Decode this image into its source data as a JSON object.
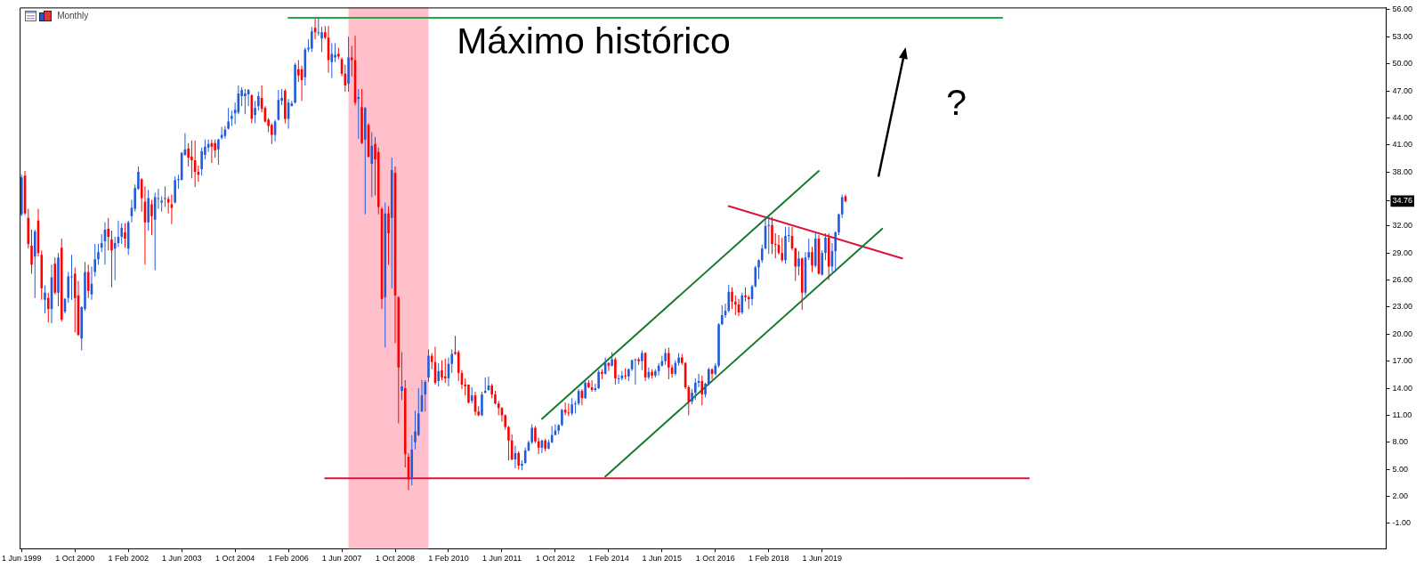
{
  "chart_data": {
    "type": "candlestick",
    "title": "Monthly",
    "x": [
      "1999-06",
      "1999-07",
      "1999-08",
      "1999-09",
      "1999-10",
      "1999-11",
      "1999-12",
      "2000-01",
      "2000-02",
      "2000-03",
      "2000-04",
      "2000-05",
      "2000-06",
      "2000-07",
      "2000-08",
      "2000-09",
      "2000-10",
      "2000-11",
      "2000-12",
      "2001-01",
      "2001-02",
      "2001-03",
      "2001-04",
      "2001-05",
      "2001-06",
      "2001-07",
      "2001-08",
      "2001-09",
      "2001-10",
      "2001-11",
      "2001-12",
      "2002-01",
      "2002-02",
      "2002-03",
      "2002-04",
      "2002-05",
      "2002-06",
      "2002-07",
      "2002-08",
      "2002-09",
      "2002-10",
      "2002-11",
      "2002-12",
      "2003-01",
      "2003-02",
      "2003-03",
      "2003-04",
      "2003-05",
      "2003-06",
      "2003-07",
      "2003-08",
      "2003-09",
      "2003-10",
      "2003-11",
      "2003-12",
      "2004-01",
      "2004-02",
      "2004-03",
      "2004-04",
      "2004-05",
      "2004-06",
      "2004-07",
      "2004-08",
      "2004-09",
      "2004-10",
      "2004-11",
      "2004-12",
      "2005-01",
      "2005-02",
      "2005-03",
      "2005-04",
      "2005-05",
      "2005-06",
      "2005-07",
      "2005-08",
      "2005-09",
      "2005-10",
      "2005-11",
      "2005-12",
      "2006-01",
      "2006-02",
      "2006-03",
      "2006-04",
      "2006-05",
      "2006-06",
      "2006-07",
      "2006-08",
      "2006-09",
      "2006-10",
      "2006-11",
      "2006-12",
      "2007-01",
      "2007-02",
      "2007-03",
      "2007-04",
      "2007-05",
      "2007-06",
      "2007-07",
      "2007-08",
      "2007-09",
      "2007-10",
      "2007-11",
      "2007-12",
      "2008-01",
      "2008-02",
      "2008-03",
      "2008-04",
      "2008-05",
      "2008-06",
      "2008-07",
      "2008-08",
      "2008-09",
      "2008-10",
      "2008-11",
      "2008-12",
      "2009-01",
      "2009-02",
      "2009-03",
      "2009-04",
      "2009-05",
      "2009-06",
      "2009-07",
      "2009-08",
      "2009-09",
      "2009-10",
      "2009-11",
      "2009-12",
      "2010-01",
      "2010-02",
      "2010-03",
      "2010-04",
      "2010-05",
      "2010-06",
      "2010-07",
      "2010-08",
      "2010-09",
      "2010-10",
      "2010-11",
      "2010-12",
      "2011-01",
      "2011-02",
      "2011-03",
      "2011-04",
      "2011-05",
      "2011-06",
      "2011-07",
      "2011-08",
      "2011-09",
      "2011-10",
      "2011-11",
      "2011-12",
      "2012-01",
      "2012-02",
      "2012-03",
      "2012-04",
      "2012-05",
      "2012-06",
      "2012-07",
      "2012-08",
      "2012-09",
      "2012-10",
      "2012-11",
      "2012-12",
      "2013-01",
      "2013-02",
      "2013-03",
      "2013-04",
      "2013-05",
      "2013-06",
      "2013-07",
      "2013-08",
      "2013-09",
      "2013-10",
      "2013-11",
      "2013-12",
      "2014-01",
      "2014-02",
      "2014-03",
      "2014-04",
      "2014-05",
      "2014-06",
      "2014-07",
      "2014-08",
      "2014-09",
      "2014-10",
      "2014-11",
      "2014-12",
      "2015-01",
      "2015-02",
      "2015-03",
      "2015-04",
      "2015-05",
      "2015-06",
      "2015-07",
      "2015-08",
      "2015-09",
      "2015-10",
      "2015-11",
      "2015-12",
      "2016-01",
      "2016-02",
      "2016-03",
      "2016-04",
      "2016-05",
      "2016-06",
      "2016-07",
      "2016-08",
      "2016-09",
      "2016-10",
      "2016-11",
      "2016-12",
      "2017-01",
      "2017-02",
      "2017-03",
      "2017-04",
      "2017-05",
      "2017-06",
      "2017-07",
      "2017-08",
      "2017-09",
      "2017-10",
      "2017-11",
      "2017-12",
      "2018-01",
      "2018-02",
      "2018-03",
      "2018-04",
      "2018-05",
      "2018-06",
      "2018-07",
      "2018-08",
      "2018-09",
      "2018-10",
      "2018-11",
      "2018-12",
      "2019-01",
      "2019-02",
      "2019-03",
      "2019-04",
      "2019-05",
      "2019-06",
      "2019-07",
      "2019-08",
      "2019-09",
      "2019-10",
      "2019-11",
      "2019-12",
      "2020-01"
    ],
    "ohlc": [
      [
        33.3,
        37.7,
        33.1,
        37.4
      ],
      [
        37.6,
        38.1,
        33.2,
        33.4
      ],
      [
        32.9,
        33.9,
        29.5,
        30.0
      ],
      [
        29.8,
        31.6,
        26.7,
        27.7
      ],
      [
        28.6,
        31.6,
        24.0,
        31.4
      ],
      [
        32.6,
        33.9,
        28.6,
        29.0
      ],
      [
        28.8,
        29.3,
        23.8,
        25.1
      ],
      [
        23.8,
        25.4,
        22.3,
        24.6
      ],
      [
        24.0,
        24.6,
        21.3,
        22.8
      ],
      [
        22.8,
        27.7,
        21.2,
        26.3
      ],
      [
        27.8,
        28.5,
        24.4,
        24.6
      ],
      [
        24.6,
        29.0,
        23.1,
        28.5
      ],
      [
        29.6,
        30.6,
        21.4,
        21.6
      ],
      [
        22.5,
        24.0,
        22.3,
        23.9
      ],
      [
        24.0,
        26.9,
        23.5,
        26.4
      ],
      [
        26.3,
        28.8,
        23.8,
        26.4
      ],
      [
        26.7,
        27.4,
        20.2,
        24.0
      ],
      [
        24.3,
        25.9,
        19.8,
        19.9
      ],
      [
        19.5,
        23.1,
        18.2,
        23.0
      ],
      [
        22.8,
        28.0,
        22.6,
        26.9
      ],
      [
        26.9,
        27.7,
        24.0,
        24.8
      ],
      [
        24.4,
        27.5,
        23.8,
        25.6
      ],
      [
        26.9,
        30.0,
        26.4,
        28.3
      ],
      [
        28.3,
        30.0,
        27.7,
        29.1
      ],
      [
        29.6,
        31.1,
        29.1,
        30.1
      ],
      [
        30.3,
        32.4,
        27.7,
        31.6
      ],
      [
        31.7,
        32.9,
        29.3,
        30.8
      ],
      [
        30.5,
        31.5,
        25.2,
        29.3
      ],
      [
        29.5,
        30.8,
        26.0,
        30.1
      ],
      [
        30.1,
        32.6,
        29.7,
        30.8
      ],
      [
        30.8,
        32.3,
        30.0,
        31.8
      ],
      [
        31.3,
        32.3,
        29.6,
        30.6
      ],
      [
        29.5,
        32.6,
        28.8,
        32.4
      ],
      [
        33.1,
        34.9,
        32.4,
        34.0
      ],
      [
        33.9,
        36.6,
        33.6,
        36.2
      ],
      [
        36.1,
        38.6,
        36.0,
        38.0
      ],
      [
        37.2,
        37.3,
        33.6,
        35.1
      ],
      [
        34.7,
        36.4,
        27.7,
        32.4
      ],
      [
        32.4,
        36.0,
        31.5,
        35.1
      ],
      [
        34.4,
        34.9,
        31.0,
        33.1
      ],
      [
        32.7,
        35.7,
        27.1,
        35.2
      ],
      [
        35.0,
        36.1,
        33.9,
        35.1
      ],
      [
        34.6,
        35.3,
        33.6,
        34.8
      ],
      [
        35.0,
        36.4,
        34.1,
        35.1
      ],
      [
        35.0,
        35.3,
        33.4,
        34.6
      ],
      [
        34.4,
        35.5,
        32.2,
        34.0
      ],
      [
        34.6,
        37.5,
        34.5,
        37.1
      ],
      [
        37.1,
        37.7,
        36.1,
        37.2
      ],
      [
        37.1,
        40.2,
        37.1,
        40.1
      ],
      [
        39.9,
        42.3,
        39.8,
        40.5
      ],
      [
        40.6,
        41.2,
        38.6,
        39.6
      ],
      [
        39.7,
        41.5,
        37.3,
        39.3
      ],
      [
        39.3,
        41.5,
        36.3,
        38.0
      ],
      [
        38.0,
        38.7,
        36.9,
        37.7
      ],
      [
        38.3,
        40.7,
        37.6,
        40.3
      ],
      [
        39.9,
        41.6,
        39.4,
        40.8
      ],
      [
        40.7,
        41.6,
        40.2,
        41.1
      ],
      [
        41.2,
        41.6,
        39.0,
        40.8
      ],
      [
        41.2,
        41.6,
        39.6,
        40.4
      ],
      [
        40.5,
        41.7,
        38.8,
        41.6
      ],
      [
        41.8,
        43.0,
        41.6,
        42.1
      ],
      [
        42.0,
        43.1,
        41.7,
        42.7
      ],
      [
        42.8,
        45.1,
        42.7,
        43.6
      ],
      [
        43.9,
        44.8,
        43.1,
        44.2
      ],
      [
        44.5,
        45.7,
        43.3,
        44.9
      ],
      [
        44.6,
        47.6,
        44.4,
        46.7
      ],
      [
        46.4,
        47.4,
        45.3,
        47.1
      ],
      [
        46.4,
        47.2,
        44.4,
        46.7
      ],
      [
        46.6,
        47.2,
        45.3,
        47.1
      ],
      [
        46.5,
        46.6,
        43.4,
        43.9
      ],
      [
        44.3,
        45.9,
        43.4,
        45.1
      ],
      [
        45.3,
        46.9,
        44.8,
        46.4
      ],
      [
        46.2,
        47.6,
        44.6,
        45.0
      ],
      [
        45.1,
        45.3,
        43.5,
        43.6
      ],
      [
        43.8,
        44.0,
        42.4,
        43.1
      ],
      [
        43.2,
        43.4,
        41.1,
        42.1
      ],
      [
        42.1,
        43.8,
        41.4,
        43.6
      ],
      [
        43.8,
        47.1,
        43.7,
        46.0
      ],
      [
        45.9,
        47.2,
        45.4,
        46.2
      ],
      [
        47.0,
        47.2,
        43.4,
        43.9
      ],
      [
        43.9,
        46.1,
        42.8,
        45.7
      ],
      [
        45.3,
        45.9,
        45.3,
        45.6
      ],
      [
        45.7,
        50.1,
        45.6,
        49.9
      ],
      [
        49.4,
        50.4,
        48.0,
        48.7
      ],
      [
        49.4,
        49.8,
        45.9,
        48.2
      ],
      [
        48.5,
        51.8,
        47.6,
        51.6
      ],
      [
        51.6,
        52.7,
        51.3,
        51.8
      ],
      [
        51.7,
        54.1,
        51.3,
        53.6
      ],
      [
        54.0,
        55.0,
        52.7,
        53.5
      ],
      [
        53.4,
        55.1,
        53.1,
        53.5
      ],
      [
        52.8,
        54.1,
        51.3,
        53.5
      ],
      [
        53.5,
        54.2,
        52.7,
        52.9
      ],
      [
        52.9,
        54.2,
        49.0,
        50.4
      ],
      [
        50.2,
        52.3,
        48.4,
        51.1
      ],
      [
        50.7,
        52.3,
        50.2,
        51.0
      ],
      [
        51.1,
        51.8,
        50.5,
        50.8
      ],
      [
        50.5,
        50.7,
        48.6,
        48.9
      ],
      [
        48.9,
        49.9,
        46.9,
        47.6
      ],
      [
        47.8,
        53.0,
        46.9,
        50.7
      ],
      [
        50.7,
        52.0,
        48.6,
        50.4
      ],
      [
        50.4,
        53.1,
        45.4,
        45.7
      ],
      [
        46.1,
        47.2,
        41.7,
        46.3
      ],
      [
        45.2,
        47.2,
        41.1,
        41.2
      ],
      [
        41.6,
        45.2,
        33.3,
        45.1
      ],
      [
        43.2,
        43.4,
        39.6,
        39.7
      ],
      [
        38.9,
        42.4,
        35.2,
        40.9
      ],
      [
        41.1,
        41.9,
        35.4,
        39.4
      ],
      [
        40.2,
        40.7,
        33.3,
        34.1
      ],
      [
        33.9,
        34.1,
        22.8,
        23.9
      ],
      [
        24.1,
        34.6,
        18.5,
        33.4
      ],
      [
        33.4,
        34.2,
        27.7,
        31.2
      ],
      [
        32.9,
        39.6,
        25.1,
        38.2
      ],
      [
        37.9,
        38.6,
        19.0,
        24.3
      ],
      [
        24.1,
        24.2,
        10.1,
        16.3
      ],
      [
        13.7,
        18.0,
        12.7,
        14.2
      ],
      [
        14.0,
        14.9,
        5.2,
        6.7
      ],
      [
        6.4,
        6.8,
        2.7,
        3.9
      ],
      [
        4.1,
        8.8,
        3.2,
        7.2
      ],
      [
        8.0,
        11.5,
        7.2,
        9.2
      ],
      [
        8.8,
        14.0,
        8.7,
        11.2
      ],
      [
        11.4,
        14.9,
        11.4,
        13.2
      ],
      [
        13.3,
        14.9,
        11.4,
        14.7
      ],
      [
        15.2,
        18.3,
        14.7,
        17.6
      ],
      [
        17.6,
        17.9,
        16.1,
        16.9
      ],
      [
        16.9,
        18.6,
        14.4,
        14.6
      ],
      [
        14.8,
        16.8,
        14.2,
        15.9
      ],
      [
        16.0,
        17.1,
        14.9,
        15.2
      ],
      [
        15.3,
        17.3,
        14.6,
        15.1
      ],
      [
        15.1,
        17.4,
        14.2,
        16.7
      ],
      [
        16.7,
        18.3,
        15.7,
        17.8
      ],
      [
        18.0,
        19.8,
        17.7,
        17.8
      ],
      [
        18.0,
        18.2,
        14.8,
        15.7
      ],
      [
        15.7,
        16.0,
        13.9,
        14.4
      ],
      [
        14.4,
        15.1,
        13.2,
        14.2
      ],
      [
        14.4,
        14.4,
        12.3,
        12.4
      ],
      [
        12.6,
        14.1,
        12.3,
        13.2
      ],
      [
        13.2,
        13.6,
        11.0,
        11.4
      ],
      [
        11.4,
        12.0,
        10.9,
        11.0
      ],
      [
        11.0,
        13.6,
        10.9,
        13.3
      ],
      [
        13.5,
        15.2,
        13.4,
        13.7
      ],
      [
        13.8,
        15.3,
        13.7,
        14.3
      ],
      [
        14.3,
        14.5,
        12.9,
        13.3
      ],
      [
        13.3,
        13.7,
        12.2,
        12.3
      ],
      [
        12.3,
        12.6,
        11.0,
        11.8
      ],
      [
        11.8,
        11.9,
        10.3,
        11.0
      ],
      [
        11.0,
        11.1,
        9.4,
        9.7
      ],
      [
        9.7,
        9.8,
        6.0,
        8.2
      ],
      [
        8.2,
        8.9,
        6.0,
        6.1
      ],
      [
        6.1,
        7.6,
        5.1,
        6.8
      ],
      [
        6.8,
        7.0,
        5.0,
        5.4
      ],
      [
        5.4,
        6.0,
        4.9,
        5.6
      ],
      [
        5.7,
        7.4,
        5.6,
        7.1
      ],
      [
        7.1,
        8.2,
        7.0,
        8.0
      ],
      [
        8.0,
        10.0,
        7.8,
        9.6
      ],
      [
        9.6,
        9.8,
        7.9,
        8.1
      ],
      [
        8.1,
        8.5,
        6.7,
        7.4
      ],
      [
        7.4,
        8.3,
        6.8,
        8.2
      ],
      [
        8.2,
        8.4,
        7.0,
        7.3
      ],
      [
        7.3,
        8.3,
        7.2,
        8.0
      ],
      [
        8.0,
        9.8,
        7.9,
        8.8
      ],
      [
        8.8,
        10.0,
        8.8,
        9.3
      ],
      [
        9.3,
        10.0,
        8.9,
        9.9
      ],
      [
        9.9,
        11.7,
        9.8,
        11.6
      ],
      [
        11.6,
        12.4,
        11.0,
        11.3
      ],
      [
        11.3,
        12.3,
        10.9,
        11.2
      ],
      [
        11.2,
        12.9,
        11.0,
        12.2
      ],
      [
        12.2,
        12.6,
        11.2,
        12.3
      ],
      [
        12.3,
        13.9,
        12.1,
        13.7
      ],
      [
        13.7,
        13.9,
        12.1,
        12.9
      ],
      [
        12.9,
        14.8,
        12.8,
        14.6
      ],
      [
        14.6,
        14.9,
        14.0,
        14.1
      ],
      [
        14.1,
        14.9,
        13.6,
        13.8
      ],
      [
        13.8,
        14.5,
        13.6,
        14.0
      ],
      [
        14.0,
        16.0,
        13.9,
        15.8
      ],
      [
        15.8,
        16.1,
        15.0,
        15.6
      ],
      [
        15.6,
        17.4,
        15.5,
        16.8
      ],
      [
        16.8,
        16.9,
        15.9,
        16.5
      ],
      [
        16.5,
        18.0,
        16.4,
        17.2
      ],
      [
        17.2,
        17.4,
        14.4,
        15.1
      ],
      [
        15.0,
        15.5,
        14.5,
        15.1
      ],
      [
        15.1,
        15.9,
        14.9,
        15.4
      ],
      [
        15.4,
        16.2,
        15.0,
        15.3
      ],
      [
        15.3,
        16.2,
        14.8,
        16.1
      ],
      [
        16.1,
        17.2,
        15.9,
        17.1
      ],
      [
        17.1,
        17.3,
        14.4,
        17.2
      ],
      [
        17.2,
        17.4,
        16.6,
        17.0
      ],
      [
        17.0,
        18.2,
        16.0,
        17.9
      ],
      [
        17.9,
        18.0,
        14.8,
        15.2
      ],
      [
        15.2,
        16.3,
        15.0,
        15.8
      ],
      [
        15.8,
        16.1,
        15.1,
        15.4
      ],
      [
        15.4,
        16.1,
        15.2,
        15.9
      ],
      [
        15.9,
        16.8,
        15.4,
        16.5
      ],
      [
        16.5,
        17.6,
        16.4,
        17.0
      ],
      [
        17.0,
        18.4,
        16.6,
        17.9
      ],
      [
        17.9,
        18.5,
        15.0,
        16.3
      ],
      [
        16.3,
        16.6,
        15.2,
        15.6
      ],
      [
        15.6,
        17.1,
        15.4,
        16.8
      ],
      [
        16.8,
        17.9,
        16.5,
        17.4
      ],
      [
        17.4,
        17.8,
        16.6,
        16.8
      ],
      [
        16.8,
        16.9,
        13.9,
        14.1
      ],
      [
        14.1,
        14.3,
        11.0,
        12.5
      ],
      [
        12.5,
        13.9,
        12.2,
        13.5
      ],
      [
        13.5,
        15.1,
        12.7,
        14.6
      ],
      [
        14.6,
        15.6,
        14.1,
        14.8
      ],
      [
        14.8,
        15.4,
        12.1,
        13.3
      ],
      [
        13.3,
        14.6,
        13.0,
        14.5
      ],
      [
        14.5,
        16.3,
        14.3,
        16.1
      ],
      [
        16.1,
        16.2,
        15.0,
        15.6
      ],
      [
        15.6,
        16.8,
        15.4,
        16.5
      ],
      [
        16.5,
        21.2,
        16.3,
        21.1
      ],
      [
        21.1,
        23.2,
        21.0,
        22.1
      ],
      [
        22.1,
        23.4,
        21.8,
        22.6
      ],
      [
        22.6,
        25.5,
        22.4,
        24.7
      ],
      [
        24.7,
        25.2,
        22.8,
        23.6
      ],
      [
        23.6,
        24.3,
        22.1,
        23.3
      ],
      [
        23.3,
        23.9,
        22.0,
        22.4
      ],
      [
        22.4,
        24.6,
        22.2,
        24.3
      ],
      [
        24.3,
        25.2,
        23.6,
        24.1
      ],
      [
        24.1,
        24.3,
        22.8,
        23.9
      ],
      [
        23.9,
        25.5,
        23.2,
        25.3
      ],
      [
        25.3,
        27.6,
        25.2,
        27.4
      ],
      [
        27.4,
        28.3,
        26.1,
        28.2
      ],
      [
        28.2,
        29.9,
        27.9,
        29.5
      ],
      [
        29.5,
        32.8,
        29.4,
        32.0
      ],
      [
        32.0,
        33.1,
        28.9,
        32.1
      ],
      [
        32.1,
        33.0,
        28.9,
        30.0
      ],
      [
        30.0,
        31.2,
        28.4,
        29.9
      ],
      [
        29.9,
        31.0,
        28.8,
        29.0
      ],
      [
        29.0,
        30.7,
        28.0,
        28.2
      ],
      [
        28.2,
        31.9,
        27.8,
        30.9
      ],
      [
        30.9,
        31.9,
        30.2,
        31.0
      ],
      [
        30.9,
        31.9,
        29.3,
        29.5
      ],
      [
        29.5,
        29.6,
        25.9,
        27.5
      ],
      [
        27.5,
        29.2,
        26.5,
        28.4
      ],
      [
        28.4,
        28.5,
        22.7,
        24.6
      ],
      [
        24.6,
        29.1,
        24.3,
        28.5
      ],
      [
        28.5,
        30.6,
        28.2,
        29.1
      ],
      [
        29.1,
        29.7,
        26.9,
        27.6
      ],
      [
        27.6,
        31.2,
        27.4,
        30.6
      ],
      [
        30.6,
        31.0,
        26.6,
        26.7
      ],
      [
        26.6,
        29.3,
        26.5,
        29.0
      ],
      [
        29.0,
        31.2,
        28.2,
        30.7
      ],
      [
        30.7,
        31.2,
        26.0,
        27.5
      ],
      [
        27.5,
        30.1,
        26.9,
        29.2
      ],
      [
        29.2,
        31.4,
        26.9,
        31.3
      ],
      [
        31.3,
        33.4,
        31.0,
        33.3
      ],
      [
        33.3,
        35.5,
        32.9,
        35.2
      ],
      [
        35.3,
        35.5,
        34.6,
        34.76
      ]
    ],
    "colors": [
      "#1f5bdc",
      "#ff0000",
      "#ff0000",
      "#ff0000",
      "#1f5bdc",
      "#ff0000",
      "#ff0000",
      "#1f5bdc",
      "#ff0000",
      "#1f5bdc",
      "#ff0000",
      "#1f5bdc",
      "#ff0000",
      "#1f5bdc",
      "#1f5bdc",
      "#1f5bdc",
      "#ff0000",
      "#ff0000",
      "#1f5bdc",
      "#1f5bdc",
      "#ff0000",
      "#1f5bdc",
      "#1f5bdc",
      "#1f5bdc",
      "#1f5bdc",
      "#1f5bdc",
      "#ff0000",
      "#ff0000",
      "#1f5bdc",
      "#1f5bdc",
      "#1f5bdc",
      "#ff0000",
      "#1f5bdc",
      "#1f5bdc",
      "#1f5bdc",
      "#1f5bdc",
      "#ff0000",
      "#ff0000",
      "#1f5bdc",
      "#ff0000",
      "#1f5bdc",
      "#1f5bdc",
      "#1f5bdc",
      "#1f5bdc",
      "#ff0000",
      "#ff0000",
      "#1f5bdc",
      "#1f5bdc",
      "#1f5bdc",
      "#1f5bdc",
      "#ff0000",
      "#ff0000",
      "#ff0000",
      "#ff0000",
      "#1f5bdc",
      "#1f5bdc",
      "#1f5bdc",
      "#ff0000",
      "#ff0000",
      "#1f5bdc",
      "#1f5bdc",
      "#1f5bdc",
      "#1f5bdc",
      "#1f5bdc",
      "#1f5bdc",
      "#1f5bdc",
      "#1f5bdc",
      "#1f5bdc",
      "#1f5bdc",
      "#ff0000",
      "#1f5bdc",
      "#1f5bdc",
      "#ff0000",
      "#ff0000",
      "#ff0000",
      "#ff0000",
      "#1f5bdc",
      "#1f5bdc",
      "#1f5bdc",
      "#ff0000",
      "#1f5bdc",
      "#1f5bdc",
      "#1f5bdc",
      "#ff0000",
      "#ff0000",
      "#1f5bdc",
      "#1f5bdc",
      "#1f5bdc",
      "#ff0000",
      "#1f5bdc",
      "#1f5bdc",
      "#ff0000",
      "#ff0000",
      "#1f5bdc",
      "#1f5bdc",
      "#ff0000",
      "#ff0000",
      "#ff0000",
      "#1f5bdc",
      "#ff0000",
      "#ff0000",
      "#1f5bdc",
      "#ff0000",
      "#1f5bdc",
      "#ff0000",
      "#1f5bdc",
      "#ff0000",
      "#ff0000",
      "#ff0000",
      "#1f5bdc",
      "#ff0000",
      "#1f5bdc",
      "#ff0000",
      "#ff0000",
      "#1f5bdc",
      "#ff0000",
      "#ff0000",
      "#1f5bdc",
      "#1f5bdc",
      "#1f5bdc",
      "#1f5bdc",
      "#1f5bdc",
      "#1f5bdc",
      "#ff0000",
      "#ff0000",
      "#1f5bdc",
      "#ff0000",
      "#ff0000",
      "#1f5bdc",
      "#1f5bdc",
      "#ff0000",
      "#ff0000",
      "#ff0000",
      "#ff0000",
      "#ff0000",
      "#1f5bdc",
      "#ff0000",
      "#ff0000",
      "#1f5bdc",
      "#1f5bdc",
      "#1f5bdc",
      "#ff0000",
      "#ff0000",
      "#ff0000",
      "#ff0000",
      "#ff0000",
      "#ff0000",
      "#ff0000",
      "#1f5bdc",
      "#ff0000",
      "#1f5bdc",
      "#1f5bdc",
      "#1f5bdc",
      "#1f5bdc",
      "#ff0000",
      "#ff0000",
      "#1f5bdc",
      "#ff0000",
      "#1f5bdc",
      "#1f5bdc",
      "#1f5bdc",
      "#1f5bdc",
      "#1f5bdc",
      "#ff0000",
      "#ff0000",
      "#1f5bdc",
      "#1f5bdc",
      "#1f5bdc",
      "#ff0000",
      "#1f5bdc",
      "#ff0000",
      "#ff0000",
      "#1f5bdc",
      "#1f5bdc",
      "#ff0000",
      "#1f5bdc",
      "#ff0000",
      "#1f5bdc",
      "#ff0000",
      "#1f5bdc",
      "#1f5bdc",
      "#ff0000",
      "#1f5bdc",
      "#1f5bdc",
      "#1f5bdc",
      "#ff0000",
      "#1f5bdc",
      "#ff0000",
      "#1f5bdc",
      "#ff0000",
      "#1f5bdc",
      "#1f5bdc",
      "#1f5bdc",
      "#1f5bdc",
      "#ff0000",
      "#ff0000",
      "#1f5bdc",
      "#1f5bdc",
      "#ff0000",
      "#ff0000",
      "#ff0000",
      "#1f5bdc",
      "#1f5bdc",
      "#1f5bdc",
      "#ff0000",
      "#1f5bdc",
      "#1f5bdc",
      "#ff0000",
      "#1f5bdc",
      "#1f5bdc",
      "#1f5bdc",
      "#1f5bdc",
      "#1f5bdc",
      "#ff0000",
      "#ff0000",
      "#ff0000",
      "#1f5bdc",
      "#ff0000",
      "#ff0000",
      "#1f5bdc",
      "#1f5bdc",
      "#1f5bdc",
      "#1f5bdc",
      "#1f5bdc",
      "#1f5bdc",
      "#ff0000",
      "#ff0000",
      "#ff0000",
      "#ff0000",
      "#1f5bdc",
      "#1f5bdc",
      "#ff0000",
      "#ff0000",
      "#1f5bdc",
      "#ff0000",
      "#1f5bdc",
      "#1f5bdc",
      "#ff0000",
      "#1f5bdc",
      "#ff0000",
      "#1f5bdc",
      "#1f5bdc",
      "#ff0000",
      "#1f5bdc",
      "#1f5bdc",
      "#1f5bdc",
      "#1f5bdc",
      "#ff0000"
    ],
    "series": [
      {
        "type": "line",
        "x": [
          "2006-02",
          "2023-12"
        ],
        "values": [
          55.1,
          55.1
        ],
        "color": "#21a84e"
      },
      {
        "type": "line",
        "x": [
          "2007-01",
          "2024-08"
        ],
        "values": [
          4.0,
          4.0
        ],
        "color": "#dc143c"
      },
      {
        "type": "line",
        "x": [
          "2012-06",
          "2019-05"
        ],
        "values": [
          10.6,
          38.1
        ],
        "color": "#177a30"
      },
      {
        "type": "line",
        "x": [
          "2014-01",
          "2020-12"
        ],
        "values": [
          4.2,
          31.7
        ],
        "color": "#177a30"
      },
      {
        "type": "line",
        "x": [
          "2017-02",
          "2021-06"
        ],
        "values": [
          34.2,
          28.4
        ],
        "color": "#dc143c"
      }
    ],
    "bands": [
      {
        "axis": "x",
        "from": "2007-08",
        "to": "2009-08",
        "color": "#ffc0cb"
      }
    ],
    "annotations": [
      "Máximo histórico",
      "?"
    ],
    "xlim": [
      "1999-05-14",
      "2033-07-04"
    ],
    "xticks": [
      {
        "value": "1999-06",
        "label": "1 Jun 1999"
      },
      {
        "value": "2000-10",
        "label": "1 Oct 2000"
      },
      {
        "value": "2002-02",
        "label": "1 Feb 2002"
      },
      {
        "value": "2003-06",
        "label": "1 Jun 2003"
      },
      {
        "value": "2004-10",
        "label": "1 Oct 2004"
      },
      {
        "value": "2006-02",
        "label": "1 Feb 2006"
      },
      {
        "value": "2007-06",
        "label": "1 Jun 2007"
      },
      {
        "value": "2008-10",
        "label": "1 Oct 2008"
      },
      {
        "value": "2010-02",
        "label": "1 Feb 2010"
      },
      {
        "value": "2011-06",
        "label": "1 Jun 2011"
      },
      {
        "value": "2012-10",
        "label": "1 Oct 2012"
      },
      {
        "value": "2014-02",
        "label": "1 Feb 2014"
      },
      {
        "value": "2015-06",
        "label": "1 Jun 2015"
      },
      {
        "value": "2016-10",
        "label": "1 Oct 2016"
      },
      {
        "value": "2018-02",
        "label": "1 Feb 2018"
      },
      {
        "value": "2019-06",
        "label": "1 Jun 2019"
      }
    ],
    "ylim": [
      -3.8,
      56.25
    ],
    "yticks": [
      {
        "value": 56,
        "label": "56.00"
      },
      {
        "value": 53,
        "label": "53.00"
      },
      {
        "value": 50,
        "label": "50.00"
      },
      {
        "value": 47,
        "label": "47.00"
      },
      {
        "value": 44,
        "label": "44.00"
      },
      {
        "value": 41,
        "label": "41.00"
      },
      {
        "value": 38,
        "label": "38.00"
      },
      {
        "value": 34.76,
        "label": "34.76"
      },
      {
        "value": 32,
        "label": "32.00"
      },
      {
        "value": 29,
        "label": "29.00"
      },
      {
        "value": 26,
        "label": "26.00"
      },
      {
        "value": 23,
        "label": "23.00"
      },
      {
        "value": 20,
        "label": "20.00"
      },
      {
        "value": 17,
        "label": "17.00"
      },
      {
        "value": 14,
        "label": "14.00"
      },
      {
        "value": 11,
        "label": "11.00"
      },
      {
        "value": 8,
        "label": "8.00"
      },
      {
        "value": 5,
        "label": "5.00"
      },
      {
        "value": 2,
        "label": "2.00"
      },
      {
        "value": -1,
        "label": "-1.00"
      }
    ]
  }
}
